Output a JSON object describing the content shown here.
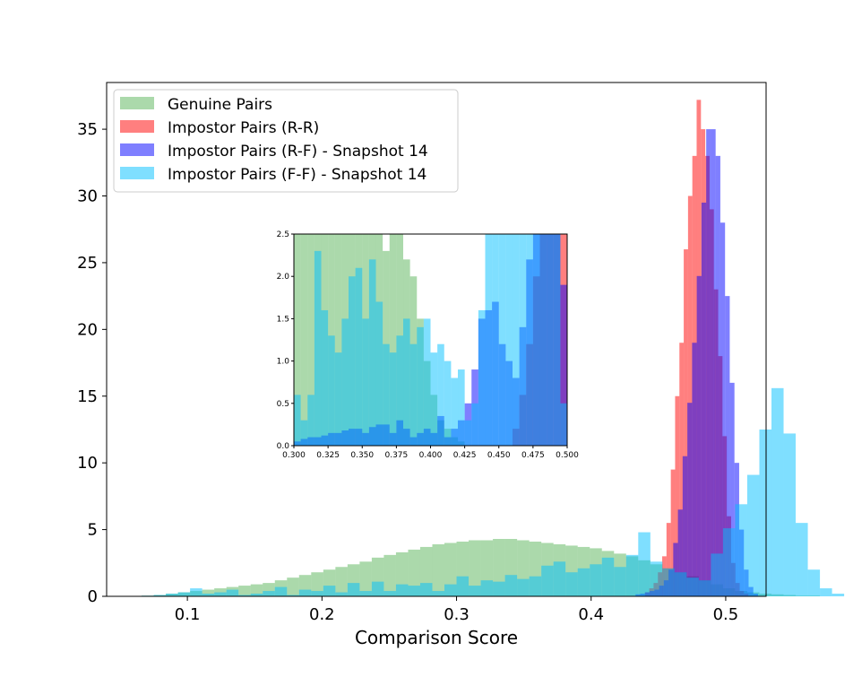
{
  "chart_data": {
    "type": "histogram",
    "title": "",
    "xlabel": "Comparison Score",
    "ylabel": "",
    "xlim": [
      0.04,
      0.53
    ],
    "ylim": [
      0,
      38.5
    ],
    "xticks": [
      "0.1",
      "0.2",
      "0.3",
      "0.4",
      "0.5"
    ],
    "yticks": [
      "0",
      "5",
      "10",
      "15",
      "20",
      "25",
      "30",
      "35"
    ],
    "legend_position": "top-left",
    "series": [
      {
        "name": "Genuine Pairs",
        "color": "#2ca02c",
        "opacity": 0.4,
        "bin_start": 0.066,
        "bin_width": 0.009,
        "values": [
          0.05,
          0.1,
          0.2,
          0.3,
          0.4,
          0.5,
          0.6,
          0.7,
          0.8,
          0.9,
          1.0,
          1.2,
          1.4,
          1.6,
          1.8,
          2.0,
          2.2,
          2.4,
          2.6,
          2.9,
          3.1,
          3.3,
          3.5,
          3.7,
          3.9,
          4.0,
          4.1,
          4.2,
          4.2,
          4.3,
          4.3,
          4.2,
          4.1,
          4.0,
          3.9,
          3.8,
          3.7,
          3.6,
          3.4,
          3.2,
          3.0,
          2.7,
          2.4,
          2.1,
          1.8,
          1.5,
          1.2,
          0.9,
          0.6,
          0.4,
          0.3,
          0.2,
          0.15,
          0.1,
          0.05,
          0.05
        ]
      },
      {
        "name": "Impostor Pairs (R-R)",
        "color": "#ff0000",
        "opacity": 0.5,
        "bin_start": 0.44,
        "bin_width": 0.0032,
        "values": [
          0.3,
          0.6,
          1.0,
          1.8,
          3.0,
          5.5,
          9.5,
          15.0,
          19.0,
          26.0,
          30.0,
          33.0,
          37.2,
          35.0,
          33.0,
          29.0,
          23.0,
          18.0,
          12.0,
          6.0,
          2.5,
          1.0,
          0.4,
          0.2
        ]
      },
      {
        "name": "Impostor Pairs (R-F) - Snapshot 14",
        "color": "#0000ff",
        "opacity": 0.5,
        "bin_start": 0.433,
        "bin_width": 0.0035,
        "values": [
          0.15,
          0.2,
          0.3,
          0.4,
          0.5,
          0.8,
          1.2,
          2.0,
          4.0,
          6.5,
          10.5,
          14.5,
          19.0,
          24.0,
          29.5,
          35.0,
          35.0,
          33.0,
          28.0,
          22.5,
          16.0,
          10.0,
          5.0,
          2.0,
          0.7,
          0.2
        ]
      },
      {
        "name": "Impostor Pairs (F-F) - Snapshot 14",
        "color": "#00bfff",
        "opacity": 0.5,
        "bin_start": 0.066,
        "bin_width": 0.009,
        "values": [
          0.05,
          0.1,
          0.2,
          0.3,
          0.6,
          0.2,
          0.3,
          0.5,
          0.1,
          0.2,
          0.4,
          0.7,
          0.1,
          0.5,
          0.4,
          0.8,
          0.3,
          1.0,
          0.4,
          1.1,
          0.4,
          0.9,
          0.8,
          1.0,
          0.4,
          0.9,
          1.5,
          0.8,
          1.2,
          1.1,
          1.6,
          1.3,
          1.5,
          2.3,
          2.6,
          1.8,
          2.1,
          2.4,
          2.9,
          2.2,
          3.1,
          4.8,
          2.6,
          2.1,
          1.8,
          1.4,
          1.2,
          3.2,
          5.1,
          6.9,
          9.1,
          12.5,
          15.6,
          12.2,
          5.5,
          2.0,
          0.6,
          0.2
        ]
      }
    ],
    "inset": {
      "xlim": [
        0.3,
        0.5
      ],
      "ylim": [
        0,
        2.5
      ],
      "xticks": [
        "0.300",
        "0.325",
        "0.350",
        "0.375",
        "0.400",
        "0.425",
        "0.450",
        "0.475",
        "0.500"
      ],
      "yticks": [
        "0.0",
        "0.5",
        "1.0",
        "1.5",
        "2.0",
        "2.5"
      ],
      "bin_width": 0.005,
      "bin_start": 0.3,
      "series": [
        {
          "name": "Genuine Pairs",
          "values": [
            2.6,
            2.6,
            2.6,
            2.6,
            2.6,
            2.6,
            2.6,
            2.6,
            2.6,
            2.5,
            2.6,
            2.6,
            2.6,
            2.3,
            2.6,
            2.6,
            2.2,
            2.0,
            1.5,
            1.0,
            0.6,
            0.3,
            0.2,
            0.1,
            0.05,
            0.0,
            0.0,
            0.0,
            0.0,
            0.0,
            0.0,
            0.0,
            0.0,
            0.0,
            0.0,
            0.0,
            0.0,
            0.0,
            0.0,
            0.0
          ]
        },
        {
          "name": "Impostor Pairs (R-R)",
          "values": [
            0,
            0,
            0,
            0,
            0,
            0,
            0,
            0,
            0,
            0,
            0,
            0,
            0,
            0,
            0,
            0,
            0,
            0,
            0,
            0,
            0,
            0,
            0,
            0,
            0,
            0,
            0,
            0,
            0,
            0,
            0,
            0,
            0.2,
            0.6,
            1.2,
            2.0,
            2.6,
            2.6,
            2.6,
            2.6
          ]
        },
        {
          "name": "Impostor Pairs (R-F) - Snapshot 14",
          "values": [
            0.05,
            0.08,
            0.1,
            0.1,
            0.12,
            0.15,
            0.15,
            0.18,
            0.2,
            0.2,
            0.15,
            0.22,
            0.25,
            0.25,
            0.15,
            0.3,
            0.2,
            0.1,
            0.15,
            0.2,
            0.15,
            0.35,
            0.1,
            0.2,
            0.3,
            0.5,
            0.9,
            1.5,
            1.6,
            1.7,
            1.2,
            1.0,
            0.8,
            1.4,
            2.2,
            2.6,
            2.6,
            2.6,
            2.6,
            1.9
          ]
        },
        {
          "name": "Impostor Pairs (F-F) - Snapshot 14",
          "values": [
            0.6,
            0.3,
            0.6,
            2.3,
            1.6,
            1.3,
            1.1,
            1.5,
            2.0,
            2.1,
            1.5,
            2.2,
            1.7,
            1.2,
            1.1,
            1.3,
            1.5,
            1.2,
            1.4,
            1.5,
            1.1,
            1.2,
            1.0,
            0.8,
            0.9,
            0.3,
            0.5,
            1.6,
            2.6,
            2.6,
            2.6,
            2.6,
            2.6,
            2.6,
            2.6,
            2.6,
            2.6,
            2.6,
            2.6,
            0.5
          ]
        }
      ]
    }
  }
}
